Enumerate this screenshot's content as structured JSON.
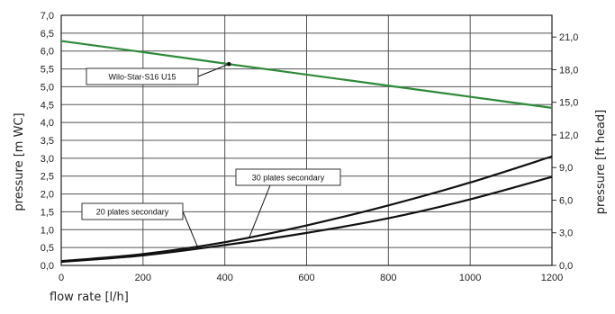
{
  "chart_data": {
    "type": "line",
    "xlabel": "flow rate [l/h]",
    "ylabel": "pressure [m WC]",
    "y2label": "pressure [ft head]",
    "xlim": [
      0,
      1200
    ],
    "ylim": [
      0,
      7.0
    ],
    "y2lim": [
      0,
      23.0
    ],
    "x_ticks": [
      "0",
      "200",
      "400",
      "600",
      "800",
      "1000",
      "1200"
    ],
    "y_ticks": [
      "0,0",
      "0,5",
      "1,0",
      "1,5",
      "2,0",
      "2,5",
      "3,0",
      "3,5",
      "4,0",
      "4,5",
      "5,0",
      "5,5",
      "6,0",
      "6,5",
      "7,0"
    ],
    "y2_ticks": [
      "0,0",
      "3,0",
      "6,0",
      "9,0",
      "12,0",
      "15,0",
      "18,0",
      "21,0"
    ],
    "grid": true,
    "series": [
      {
        "name": "Wilo-Star-S16 U15",
        "color": "#2e8b3a",
        "x": [
          0,
          200,
          400,
          600,
          800,
          1000,
          1200
        ],
        "values": [
          6.28,
          5.97,
          5.65,
          5.34,
          5.03,
          4.72,
          4.41
        ]
      },
      {
        "name": "30 plates secondary",
        "color": "#111111",
        "x": [
          0,
          200,
          400,
          600,
          800,
          1000,
          1200
        ],
        "values": [
          0.12,
          0.32,
          0.65,
          1.12,
          1.68,
          2.32,
          3.05
        ]
      },
      {
        "name": "20 plates secondary",
        "color": "#111111",
        "x": [
          0,
          200,
          400,
          600,
          800,
          1000,
          1200
        ],
        "values": [
          0.1,
          0.28,
          0.57,
          0.91,
          1.32,
          1.85,
          2.48
        ]
      }
    ]
  }
}
